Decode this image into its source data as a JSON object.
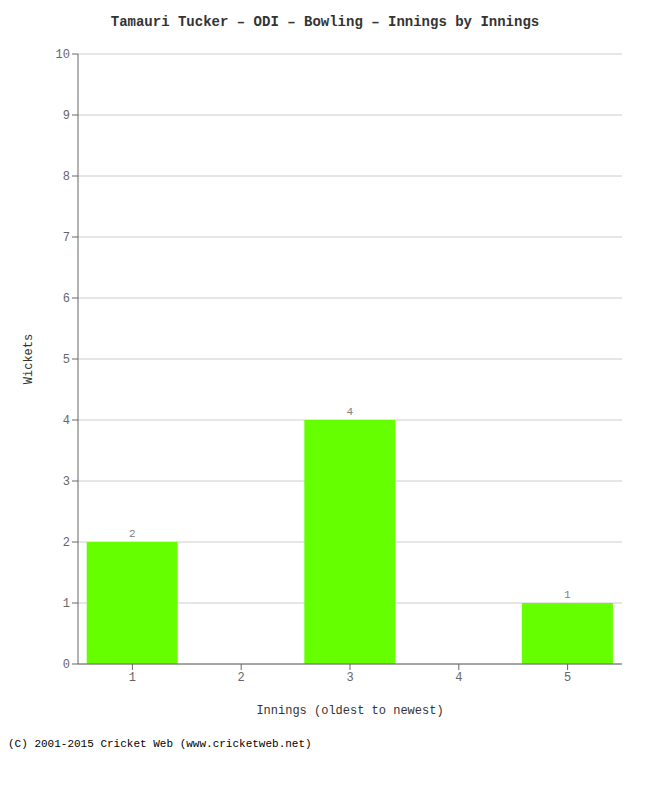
{
  "chart_data": {
    "type": "bar",
    "title": "Tamauri Tucker – ODI – Bowling – Innings by Innings",
    "xlabel": "Innings (oldest to newest)",
    "ylabel": "Wickets",
    "categories": [
      "1",
      "2",
      "3",
      "4",
      "5"
    ],
    "values": [
      2,
      0,
      4,
      0,
      1
    ],
    "color": "#66ff00",
    "ylim": [
      0,
      10
    ],
    "yticks": [
      0,
      1,
      2,
      3,
      4,
      5,
      6,
      7,
      8,
      9,
      10
    ],
    "grid": true,
    "data_labels": true,
    "annotations": [
      "(C) 2001-2015 Cricket Web (www.cricketweb.net)"
    ]
  }
}
